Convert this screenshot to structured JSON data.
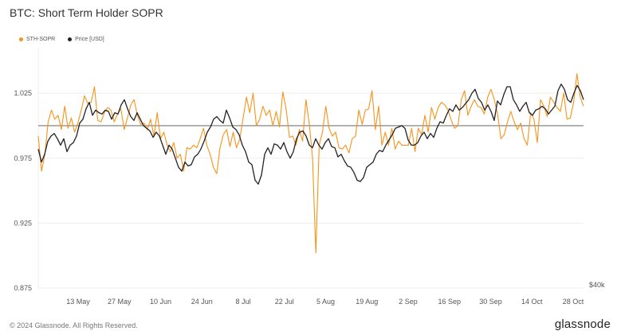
{
  "chart_data": {
    "type": "line",
    "title": "BTC: Short Term Holder SOPR",
    "x_ticks": [
      "13 May",
      "27 May",
      "10 Jun",
      "24 Jun",
      "8 Jul",
      "22 Jul",
      "5 Aug",
      "19 Aug",
      "2 Sep",
      "16 Sep",
      "30 Sep",
      "14 Oct",
      "28 Oct"
    ],
    "y_ticks": [
      "1.025",
      "0.975",
      "0.925",
      "0.875"
    ],
    "y_right_label": "$40k",
    "ylim": [
      0.875,
      1.06
    ],
    "reference_line": 1.0,
    "legend_position": "top-left",
    "grid": true,
    "series": [
      {
        "name": "STH-SOPR",
        "color": "#F7931A",
        "values": [
          0.992,
          0.965,
          0.978,
          1.003,
          1.012,
          1.005,
          1.008,
          0.997,
          1.015,
          0.998,
          1.006,
          0.995,
          1.002,
          1.012,
          1.023,
          1.017,
          1.018,
          1.03,
          1.004,
          1.003,
          1.01,
          1.014,
          1.012,
          1.003,
          1.009,
          1.013,
          0.997,
          1.006,
          1.016,
          1.02,
          1.008,
          1.001,
          1.002,
          0.997,
          1.005,
          0.992,
          1.01,
          0.99,
          0.995,
          0.985,
          0.98,
          0.987,
          0.975,
          0.978,
          0.965,
          0.983,
          0.982,
          0.985,
          0.983,
          0.99,
          0.998,
          0.985,
          0.978,
          0.968,
          0.963,
          0.983,
          0.993,
          0.997,
          0.984,
          0.995,
          0.983,
          0.99,
          1.006,
          1.022,
          1.01,
          1.025,
          1.0,
          1.005,
          1.015,
          1.008,
          1.012,
          1.0,
          1.011,
          0.999,
          1.026,
          1.013,
          0.991,
          0.992,
          0.985,
          0.997,
          0.988,
          1.02,
          1.002,
          0.975,
          0.902,
          0.985,
          0.995,
          1.015,
          0.998,
          0.992,
          0.995,
          0.983,
          0.982,
          0.985,
          0.979,
          0.99,
          0.992,
          1.012,
          1.001,
          1.012,
          1.013,
          1.027,
          0.997,
          1.015,
          0.985,
          0.995,
          0.985,
          0.998,
          0.982,
          0.988,
          0.985,
          0.985,
          0.985,
          0.998,
          0.98,
          0.998,
          0.993,
          1.008,
          0.995,
          1.014,
          1.005,
          1.014,
          1.018,
          1.016,
          1.012,
          1.004,
          0.998,
          1.0,
          1.02,
          1.027,
          1.008,
          1.015,
          1.02,
          1.015,
          1.014,
          1.009,
          1.022,
          1.028,
          1.02,
          1.009,
          0.99,
          0.993,
          1.003,
          1.011,
          1.003,
          0.997,
          1.002,
          0.99,
          0.985,
          1.01,
          1.005,
          0.987,
          1.02,
          1.015,
          1.007,
          1.022,
          1.018,
          1.014,
          1.011,
          1.025,
          1.005,
          1.006,
          1.018,
          1.04,
          1.022,
          1.015
        ]
      },
      {
        "name": "Price [USD]",
        "color": "#222222",
        "values": [
          0.982,
          0.972,
          0.978,
          0.988,
          0.992,
          0.994,
          0.99,
          0.985,
          0.99,
          0.98,
          0.985,
          0.987,
          0.992,
          1.002,
          1.005,
          1.013,
          1.018,
          1.008,
          1.012,
          1.01,
          1.009,
          1.012,
          1.011,
          1.005,
          1.01,
          1.009,
          1.016,
          1.02,
          1.013,
          1.007,
          1.004,
          1.01,
          1.005,
          1.0,
          0.998,
          0.996,
          0.991,
          0.995,
          0.992,
          0.985,
          0.978,
          0.985,
          0.982,
          0.975,
          0.968,
          0.965,
          0.972,
          0.969,
          0.97,
          0.976,
          0.978,
          0.982,
          0.988,
          0.995,
          0.999,
          1.005,
          1.007,
          1.004,
          1.002,
          1.012,
          1.006,
          0.999,
          0.997,
          0.993,
          0.985,
          0.98,
          0.972,
          0.97,
          0.958,
          0.955,
          0.962,
          0.978,
          0.983,
          0.978,
          0.986,
          0.985,
          0.982,
          0.987,
          0.98,
          0.975,
          0.98,
          0.99,
          0.995,
          0.996,
          0.992,
          0.985,
          0.983,
          0.99,
          0.985,
          0.982,
          0.987,
          0.99,
          0.984,
          0.983,
          0.976,
          0.978,
          0.973,
          0.969,
          0.968,
          0.964,
          0.958,
          0.957,
          0.96,
          0.968,
          0.97,
          0.972,
          0.978,
          0.981,
          0.98,
          0.985,
          0.989,
          0.993,
          0.998,
          0.999,
          1.0,
          0.998,
          0.989,
          0.985,
          0.985,
          0.987,
          0.992,
          0.995,
          0.99,
          0.994,
          0.991,
          0.998,
          1.003,
          1.002,
          1.008,
          1.013,
          1.011,
          1.016,
          1.012,
          1.014,
          1.017,
          1.02,
          1.025,
          1.028,
          1.021,
          1.018,
          1.012,
          1.016,
          1.011,
          1.004,
          1.019,
          1.016,
          1.024,
          1.03,
          1.03,
          1.02,
          1.016,
          1.011,
          1.015,
          1.018,
          1.01,
          1.008,
          1.012,
          1.013,
          1.015,
          1.013,
          1.009,
          1.012,
          1.015,
          1.027,
          1.032,
          1.028,
          1.02,
          1.018,
          1.025,
          1.031,
          1.027,
          1.02
        ]
      }
    ]
  },
  "footer": {
    "copyright": "© 2024 Glassnode. All Rights Reserved.",
    "brand": "glassnode"
  }
}
